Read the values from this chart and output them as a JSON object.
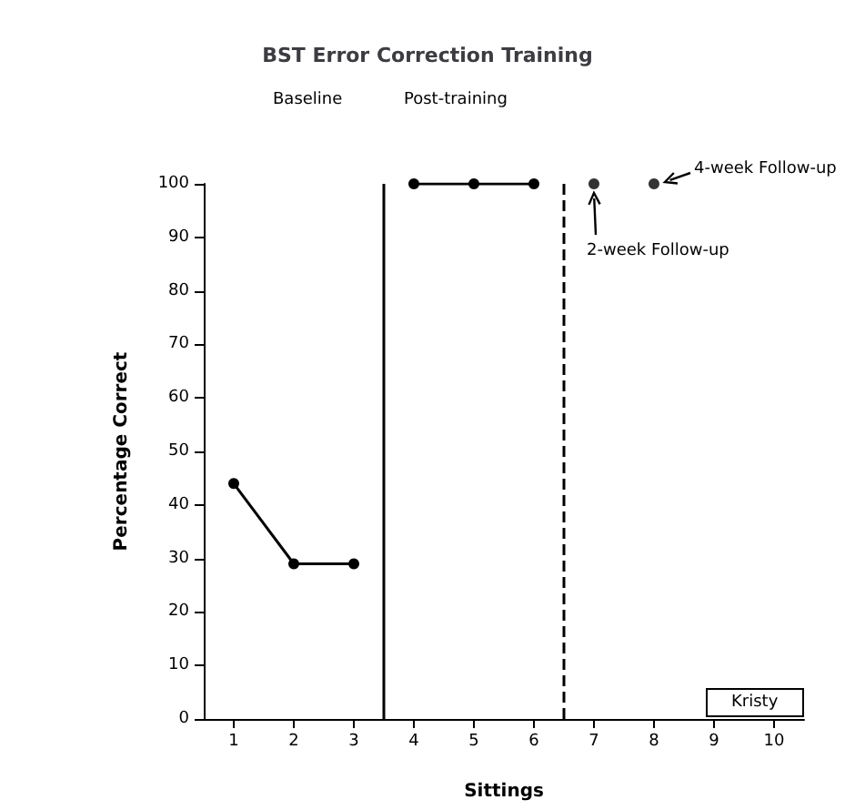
{
  "chart_data": {
    "type": "line",
    "title": "BST Error Correction Training",
    "xlabel": "Sittings",
    "ylabel": "Percentage Correct",
    "xlim": [
      0.5,
      10.5
    ],
    "xticks": [
      1,
      2,
      3,
      4,
      5,
      6,
      7,
      8,
      9,
      10
    ],
    "ylim": [
      0,
      100
    ],
    "yticks": [
      0,
      10,
      20,
      30,
      40,
      50,
      60,
      70,
      80,
      90,
      100
    ],
    "grid": false,
    "marker": "circle",
    "line_style": "solid",
    "series": [
      {
        "type": "line",
        "color": "#000000",
        "x": [
          1,
          2,
          3
        ],
        "values": [
          44,
          29,
          29
        ]
      },
      {
        "type": "line",
        "color": "#000000",
        "x": [
          4,
          5,
          6
        ],
        "values": [
          100,
          100,
          100
        ]
      },
      {
        "type": "scatter",
        "color": "#000000",
        "x": [
          7,
          8
        ],
        "values": [
          100,
          100
        ]
      }
    ],
    "ref_lines": [
      {
        "axis": "x",
        "value": 3.5,
        "line_style": "solid",
        "color": "#000000"
      },
      {
        "axis": "x",
        "value": 6.5,
        "line_style": "dashed",
        "color": "#000000"
      }
    ],
    "annotations": [
      "Baseline",
      "Post-training",
      {
        "text": "2-week Follow-up",
        "x": 7,
        "y": 100
      },
      {
        "text": "4-week Follow-up",
        "x": 8,
        "y": 100
      },
      "Kristy"
    ]
  }
}
